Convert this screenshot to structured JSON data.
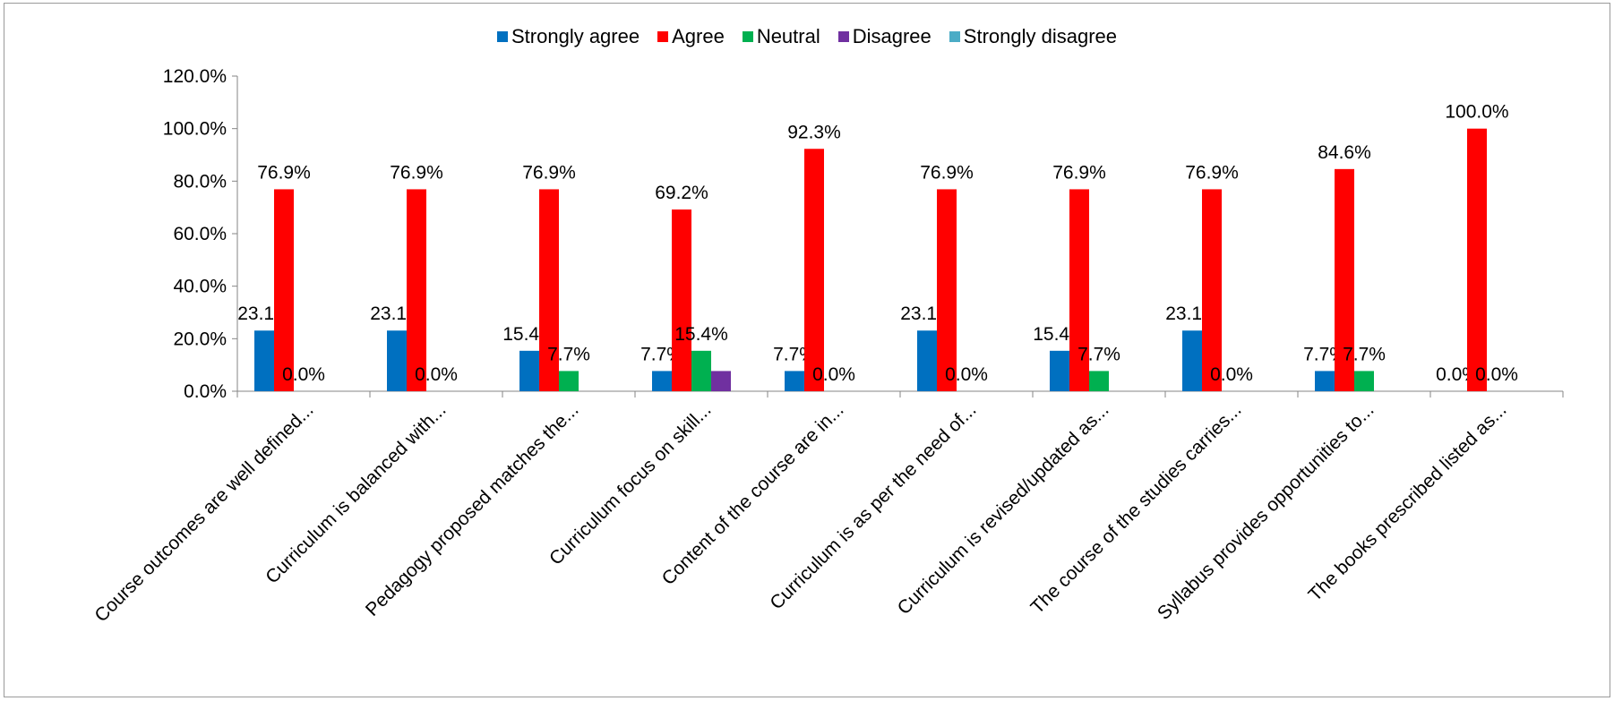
{
  "chart_data": {
    "type": "bar",
    "categories": [
      "Course outcomes are well defined...",
      "Curriculum is balanced with...",
      "Pedagogy proposed matches the...",
      "Curriculum focus on skill...",
      "Content of the course are in...",
      "Curriculum is as per the need of...",
      "Curriculum is revised/updated as...",
      "The course of the studies carries...",
      "Syllabus provides opportunities to...",
      "The books prescribed listed as..."
    ],
    "series": [
      {
        "name": "Strongly agree",
        "color": "#0070C0",
        "values": [
          23.1,
          23.1,
          15.4,
          7.7,
          7.7,
          23.1,
          15.4,
          23.1,
          7.7,
          0.0
        ]
      },
      {
        "name": "Agree",
        "color": "#FF0000",
        "values": [
          76.9,
          76.9,
          76.9,
          69.2,
          92.3,
          76.9,
          76.9,
          76.9,
          84.6,
          100.0
        ]
      },
      {
        "name": "Neutral",
        "color": "#00B050",
        "values": [
          0.0,
          0.0,
          7.7,
          15.4,
          0.0,
          0.0,
          7.7,
          0.0,
          7.7,
          0.0
        ]
      },
      {
        "name": "Disagree",
        "color": "#7030A0",
        "values": [
          0.0,
          0.0,
          0.0,
          7.7,
          0.0,
          0.0,
          0.0,
          0.0,
          0.0,
          0.0
        ]
      },
      {
        "name": "Strongly disagree",
        "color": "#4BACC6",
        "values": [
          0.0,
          0.0,
          0.0,
          0.0,
          0.0,
          0.0,
          0.0,
          0.0,
          0.0,
          0.0
        ]
      }
    ],
    "label_series": [
      "Strongly agree",
      "Agree",
      "Neutral"
    ],
    "yticks": [
      "0.0%",
      "20.0%",
      "40.0%",
      "60.0%",
      "80.0%",
      "100.0%",
      "120.0%"
    ],
    "ylim": [
      0,
      120
    ],
    "legend_position": "top",
    "grid": false
  }
}
